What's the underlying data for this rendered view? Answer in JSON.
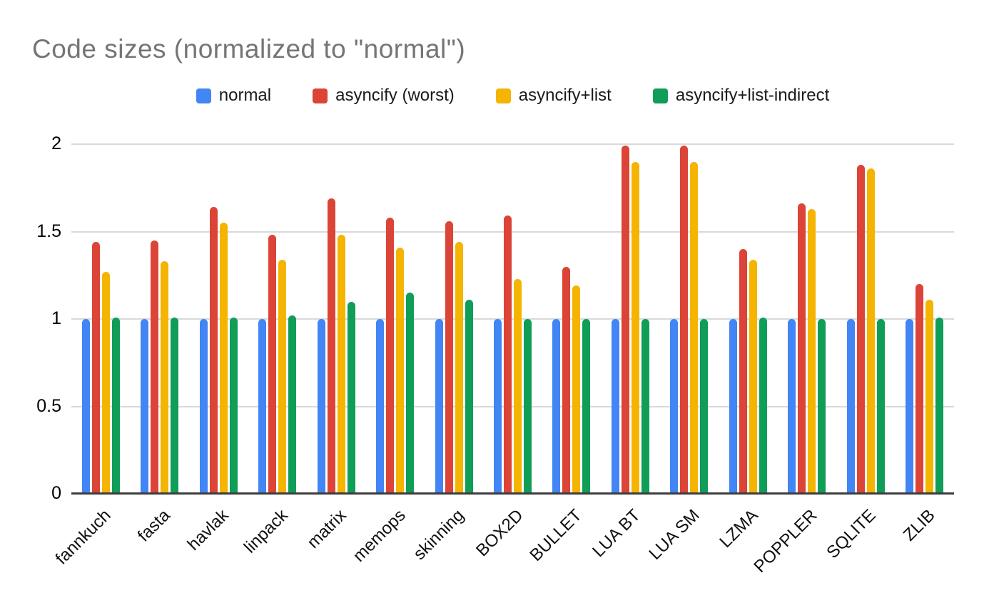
{
  "title": "Code sizes (normalized to \"normal\")",
  "colors": {
    "title_text": "#757575",
    "axis_text": "#000000",
    "gridline": "#d9d9d9",
    "baseline": "#3d3d3d",
    "background": "#ffffff"
  },
  "chart_data": {
    "type": "bar",
    "title": "Code sizes (normalized to \"normal\")",
    "xlabel": "",
    "ylabel": "",
    "ylim": [
      0,
      2
    ],
    "yticks": [
      0,
      0.5,
      1,
      1.5,
      2
    ],
    "grid": true,
    "legend_position": "top",
    "categories": [
      "fannkuch",
      "fasta",
      "havlak",
      "linpack",
      "matrix",
      "memops",
      "skinning",
      "BOX2D",
      "BULLET",
      "LUA BT",
      "LUA SM",
      "LZMA",
      "POPPLER",
      "SQLITE",
      "ZLIB"
    ],
    "series": [
      {
        "name": "normal",
        "color": "#4285F4",
        "values": [
          1.0,
          1.0,
          1.0,
          1.0,
          1.0,
          1.0,
          1.0,
          1.0,
          1.0,
          1.0,
          1.0,
          1.0,
          1.0,
          1.0,
          1.0
        ]
      },
      {
        "name": "asyncify (worst)",
        "color": "#DB4437",
        "values": [
          1.44,
          1.45,
          1.64,
          1.48,
          1.69,
          1.58,
          1.56,
          1.59,
          1.3,
          1.99,
          1.99,
          1.4,
          1.66,
          1.88,
          1.2
        ]
      },
      {
        "name": "asyncify+list",
        "color": "#F4B400",
        "values": [
          1.27,
          1.33,
          1.55,
          1.34,
          1.48,
          1.41,
          1.44,
          1.23,
          1.19,
          1.9,
          1.9,
          1.34,
          1.63,
          1.86,
          1.11
        ]
      },
      {
        "name": "asyncify+list-indirect",
        "color": "#0F9D58",
        "values": [
          1.01,
          1.01,
          1.01,
          1.02,
          1.1,
          1.15,
          1.11,
          1.0,
          1.0,
          1.0,
          1.0,
          1.01,
          1.0,
          1.0,
          1.01
        ]
      }
    ]
  }
}
